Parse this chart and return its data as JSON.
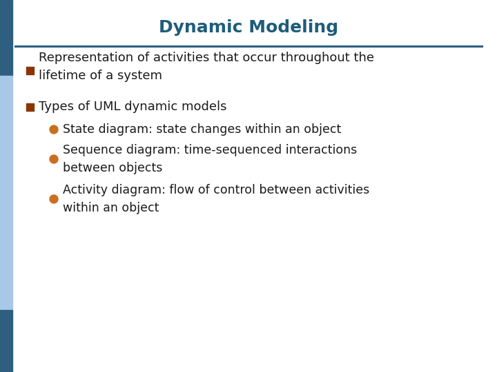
{
  "title": "Dynamic Modeling",
  "title_color": "#1F5C7A",
  "title_fontsize": 18,
  "bg_color": "#FFFFFF",
  "left_bar_top_color": "#2E5F80",
  "left_bar_mid_color": "#A8C8E8",
  "left_bar_bot_color": "#2E5F80",
  "divider_color": "#2E5F80",
  "bullet_square_color": "#8B3505",
  "bullet_circle_color": "#C87020",
  "text_color": "#1a1a1a",
  "main_bullets": [
    "Representation of activities that occur throughout the\nlifetime of a system",
    "Types of UML dynamic models"
  ],
  "sub_bullets": [
    "State diagram: state changes within an object",
    "Sequence diagram: time-sequenced interactions\nbetween objects",
    "Activity diagram: flow of control between activities\nwithin an object"
  ],
  "main_fontsize": 13,
  "sub_fontsize": 12.5
}
